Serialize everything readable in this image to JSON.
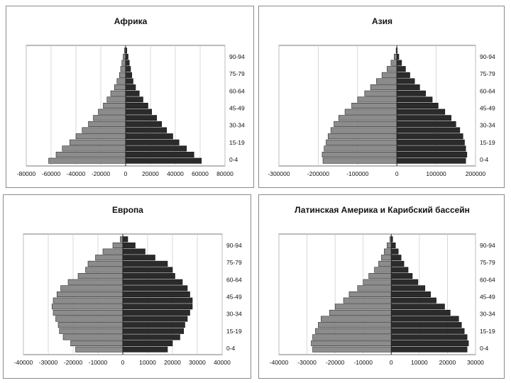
{
  "chart_data": [
    {
      "type": "bar",
      "title": "Африка",
      "age_labels": [
        "90-94",
        "75-79",
        "60-64",
        "45-49",
        "30-34",
        "15-19",
        "0-4"
      ],
      "xlim": [
        -80000,
        80000
      ],
      "x_ticks": [
        "-80000",
        "-60000",
        "-40000",
        "-20000",
        "0",
        "20000",
        "40000",
        "60000",
        "80000"
      ],
      "x_tick_values": [
        -80000,
        -60000,
        -40000,
        -20000,
        0,
        20000,
        40000,
        60000,
        80000
      ],
      "left_values": [
        -62000,
        -56000,
        -51000,
        -45000,
        -40000,
        -35000,
        -30000,
        -26000,
        -22000,
        -18000,
        -15000,
        -12000,
        -9000,
        -7000,
        -5000,
        -4000,
        -3000,
        -2000,
        -1000
      ],
      "right_values": [
        61000,
        55000,
        49000,
        43000,
        38000,
        33000,
        29000,
        25000,
        21000,
        18000,
        14000,
        11000,
        8000,
        6000,
        5000,
        4000,
        3000,
        2000,
        1000
      ]
    },
    {
      "type": "bar",
      "title": "Азия",
      "age_labels": [
        "90-94",
        "75-79",
        "60-64",
        "45-49",
        "30-34",
        "15-19",
        "0-4"
      ],
      "xlim": [
        -300000,
        200000
      ],
      "x_ticks": [
        "-300000",
        "-200000",
        "-100000",
        "0",
        "100000",
        "200000"
      ],
      "x_tick_values": [
        -300000,
        -200000,
        -100000,
        0,
        100000,
        200000
      ],
      "left_values": [
        -188000,
        -190000,
        -185000,
        -180000,
        -175000,
        -168000,
        -160000,
        -148000,
        -132000,
        -115000,
        -100000,
        -82000,
        -67000,
        -52000,
        -38000,
        -25000,
        -15000,
        -7000,
        -2000
      ],
      "right_values": [
        175000,
        178000,
        175000,
        172000,
        168000,
        160000,
        150000,
        138000,
        122000,
        105000,
        90000,
        73000,
        58000,
        45000,
        33000,
        22000,
        12000,
        5000,
        1000
      ]
    },
    {
      "type": "bar",
      "title": "Европа",
      "age_labels": [
        "90-94",
        "75-79",
        "60-64",
        "45-49",
        "30-34",
        "15-19",
        "0-4"
      ],
      "xlim": [
        -40000,
        40000
      ],
      "x_ticks": [
        "-40000",
        "-30000",
        "-20000",
        "-10000",
        "0",
        "10000",
        "20000",
        "30000",
        "40000"
      ],
      "x_tick_values": [
        -40000,
        -30000,
        -20000,
        -10000,
        0,
        10000,
        20000,
        30000,
        40000
      ],
      "left_values": [
        -19000,
        -21000,
        -24000,
        -25500,
        -26000,
        -27000,
        -28000,
        -28500,
        -28000,
        -26500,
        -25000,
        -22000,
        -18000,
        -15000,
        -14000,
        -11000,
        -8000,
        -4000,
        -1000
      ],
      "right_values": [
        18000,
        20000,
        23000,
        24500,
        25000,
        26000,
        27000,
        28000,
        28000,
        27000,
        26000,
        24000,
        21000,
        20000,
        18000,
        13000,
        9000,
        5000,
        2000
      ]
    },
    {
      "type": "bar",
      "title": "Латинская Америка и Карибский бассейн",
      "age_labels": [
        "90-94",
        "75-79",
        "60-64",
        "45-49",
        "30-34",
        "15-19",
        "0-4"
      ],
      "xlim": [
        -40000,
        30000
      ],
      "x_ticks": [
        "-40000",
        "-30000",
        "-20000",
        "-10000",
        "0",
        "10000",
        "20000",
        "30000"
      ],
      "x_tick_values": [
        -40000,
        -30000,
        -20000,
        -10000,
        0,
        10000,
        20000,
        30000
      ],
      "left_values": [
        -28000,
        -28500,
        -28000,
        -27000,
        -26000,
        -25000,
        -22000,
        -20000,
        -17000,
        -15000,
        -12000,
        -10000,
        -8000,
        -6000,
        -4500,
        -3500,
        -2500,
        -1500,
        -500
      ],
      "right_values": [
        27000,
        27500,
        27000,
        26000,
        25000,
        24000,
        21000,
        19000,
        16000,
        14000,
        12000,
        9500,
        7500,
        6000,
        4500,
        3500,
        2500,
        1500,
        500
      ]
    }
  ]
}
